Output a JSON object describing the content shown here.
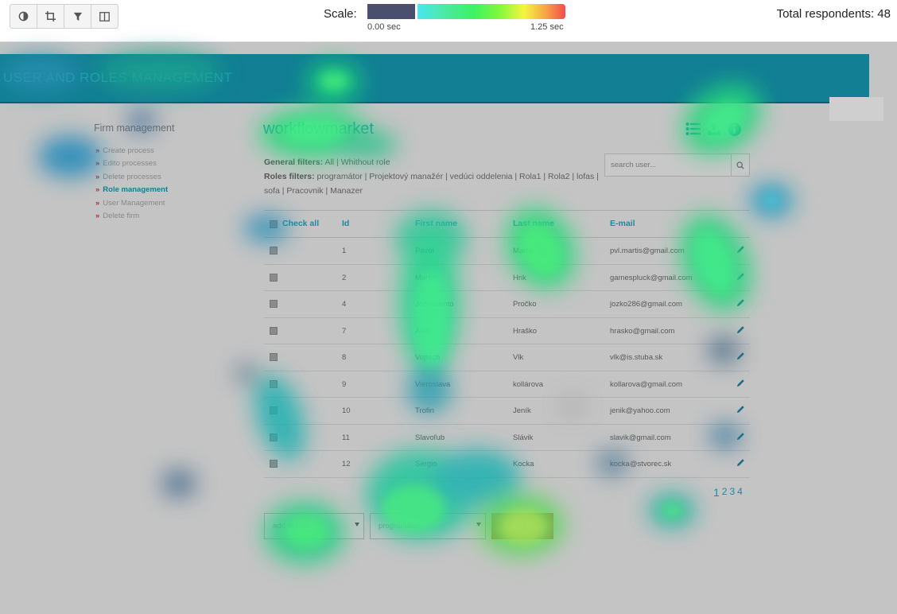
{
  "toolbar": {
    "tools": [
      {
        "icon": "contrast-icon"
      },
      {
        "icon": "crop-icon"
      },
      {
        "icon": "filter-icon"
      },
      {
        "icon": "split-view-icon"
      }
    ]
  },
  "scale": {
    "label": "Scale:",
    "min_label": "0.00 sec",
    "max_label": "1.25 sec",
    "low_color": "#4a4f70",
    "gradient_colors": [
      "#48e7f0",
      "#3df262",
      "#f5f53e",
      "#f24c4c"
    ]
  },
  "respondents": "Total respondents: 48",
  "app": {
    "header_title": "User and Roles Management",
    "header_color": "#127f94",
    "sidebar": {
      "title": "Firm management",
      "items": [
        {
          "label": "Create process",
          "active": false
        },
        {
          "label": "Edito processes",
          "active": false
        },
        {
          "label": "Delete processes",
          "active": false
        },
        {
          "label": "Role management",
          "active": true
        },
        {
          "label": "User Management",
          "active": false
        },
        {
          "label": "Delete firm",
          "active": false
        }
      ]
    },
    "main_title": "workflowmarket",
    "action_icons": [
      "list-icon",
      "upload-icon",
      "info-icon"
    ],
    "filters": {
      "general_label": "General filters:",
      "general": [
        "All",
        "Whithout role"
      ],
      "roles_label": "Roles filters:",
      "roles": [
        "programátor",
        "Projektový manažér",
        "vedúci oddelenia",
        "Rola1",
        "Rola2",
        "lofas",
        "sofa",
        "Pracovnik",
        "Manazer"
      ]
    },
    "search": {
      "placeholder": "search user..."
    },
    "table": {
      "headers": [
        "Check all",
        "Id",
        "First name",
        "Last name",
        "E-mail"
      ],
      "rows": [
        {
          "id": "1",
          "first": "Pavol",
          "last": "Martiš",
          "email": "pvl.martis@gmail.com"
        },
        {
          "id": "2",
          "first": "Martin",
          "last": "Hrik",
          "email": "gamespluck@gmail.com"
        },
        {
          "id": "4",
          "first": "Jozkotamto",
          "last": "Pročko",
          "email": "jozko286@gmail.com"
        },
        {
          "id": "7",
          "first": "Aleš",
          "last": "Hraško",
          "email": "hrasko@gmail.com"
        },
        {
          "id": "8",
          "first": "Vojtech",
          "last": "Vlk",
          "email": "vlk@is.stuba.sk"
        },
        {
          "id": "9",
          "first": "Vieroslava",
          "last": "kollárova",
          "email": "kollarova@gmail.com"
        },
        {
          "id": "10",
          "first": "Trofin",
          "last": "Jeník",
          "email": "jenik@yahoo.com"
        },
        {
          "id": "11",
          "first": "Slavoľub",
          "last": "Slávik",
          "email": "slavik@gmail.com"
        },
        {
          "id": "12",
          "first": "Sergio",
          "last": "Kocka",
          "email": "kocka@stvorec.sk"
        }
      ]
    },
    "pages": [
      "1",
      "2",
      "3",
      "4"
    ],
    "bottom": {
      "role_select": "add to role",
      "value_select": "programátor",
      "submit": "Do it!"
    }
  }
}
